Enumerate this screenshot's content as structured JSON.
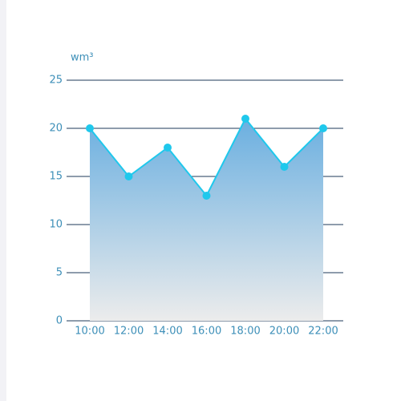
{
  "chart_data": {
    "type": "area",
    "y_label": "wm³",
    "categories": [
      "10:00",
      "12:00",
      "14:00",
      "16:00",
      "18:00",
      "20:00",
      "22:00"
    ],
    "values": [
      20,
      15,
      18,
      13,
      21,
      16,
      20
    ],
    "color": "#1fc8ec",
    "ylim": [
      0,
      25
    ],
    "yticks": [
      0,
      5,
      10,
      15,
      20,
      25
    ],
    "grid": true
  }
}
